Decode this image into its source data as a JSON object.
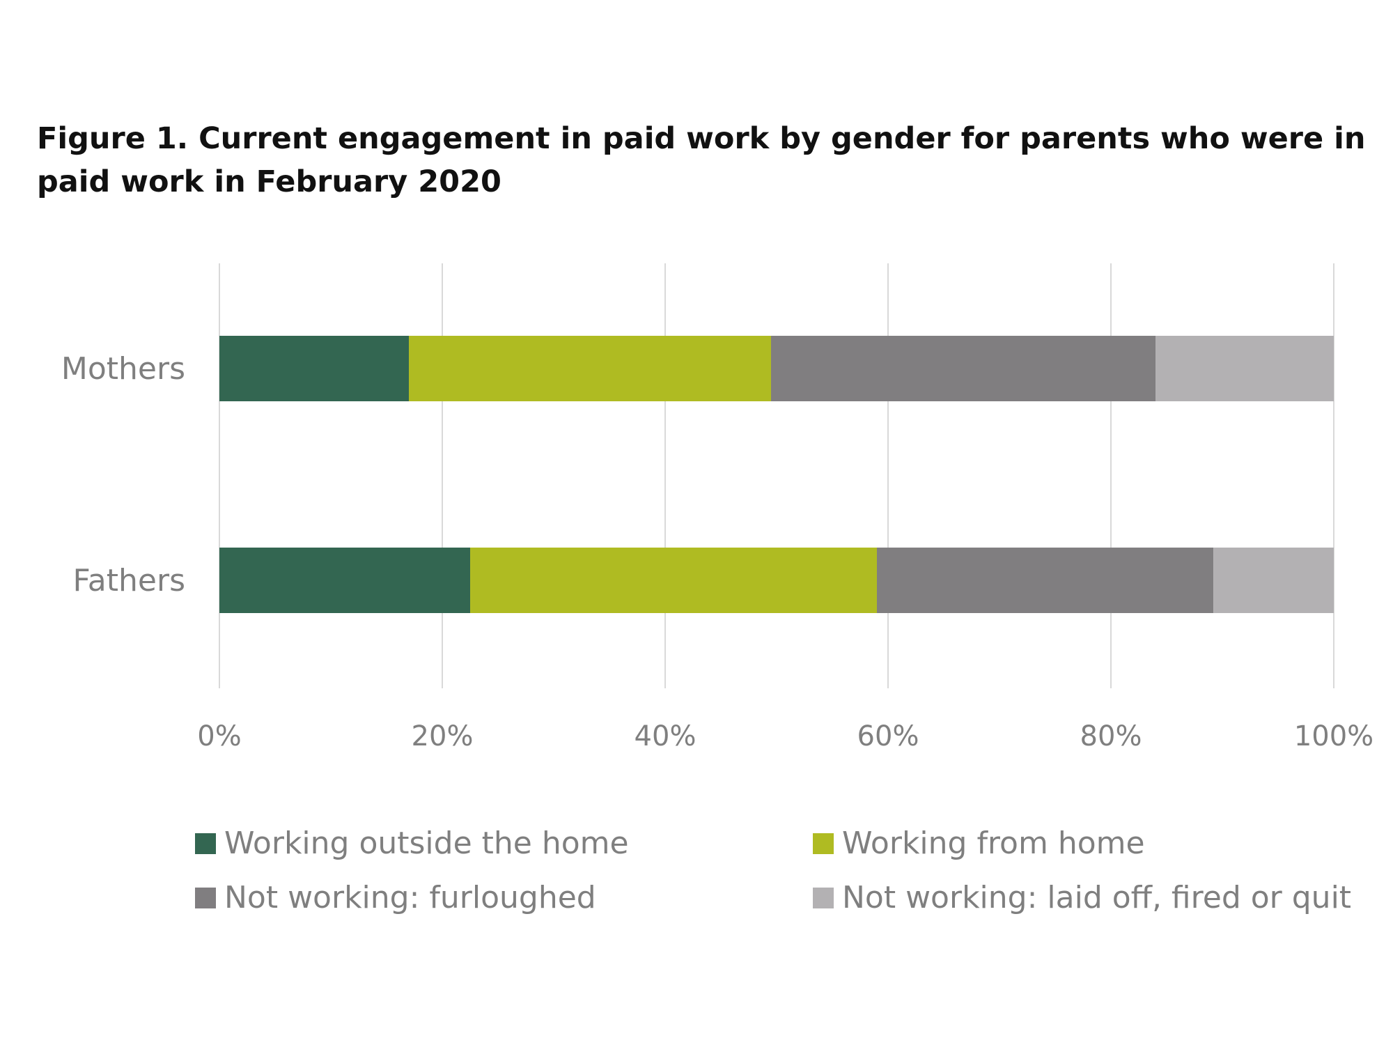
{
  "figure": {
    "title": "Figure 1. Current engagement in paid work by gender for parents who were in paid work in February 2020"
  },
  "chart_data": {
    "type": "bar",
    "orientation": "horizontal",
    "stacked": true,
    "categories": [
      "Mothers",
      "Fathers"
    ],
    "series": [
      {
        "name": "Working outside the home",
        "color": "#336651",
        "values": [
          17,
          22.5
        ]
      },
      {
        "name": "Working from home",
        "color": "#afbb22",
        "values": [
          32.5,
          36.5
        ]
      },
      {
        "name": "Not working: furloughed",
        "color": "#807e80",
        "values": [
          34.5,
          30.2
        ]
      },
      {
        "name": "Not working: laid off, fired or quit",
        "color": "#b3b1b3",
        "values": [
          16,
          10.8
        ]
      }
    ],
    "xlim": [
      0,
      100
    ],
    "xticks": [
      "0%",
      "20%",
      "40%",
      "60%",
      "80%",
      "100%"
    ],
    "grid": true,
    "legend_position": "bottom"
  }
}
